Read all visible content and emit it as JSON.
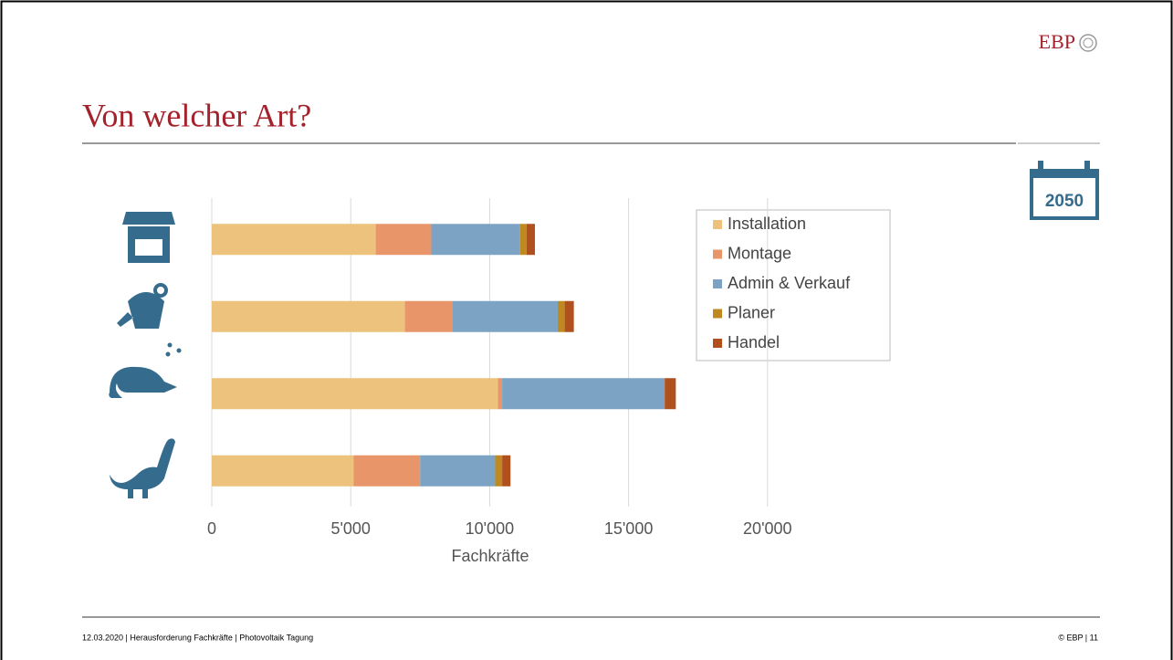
{
  "logo": "EBP",
  "badge": "2050",
  "footer": {
    "left": "12.03.2020  |  Herausforderung Fachkräfte |  Photovoltaik Tagung",
    "right": "© EBP  |  11"
  },
  "chart_data": {
    "type": "stacked-barh",
    "title": "Von welcher Art?",
    "x_label": "Fachkräfte",
    "categories": [
      null,
      null,
      null,
      null
    ],
    "series": [
      {
        "name": "Installation",
        "color": "#ecc27c",
        "values": [
          5900,
          6950,
          10300,
          5100
        ]
      },
      {
        "name": "Montage",
        "color": "#e8956a",
        "values": [
          2000,
          1700,
          150,
          2400
        ]
      },
      {
        "name": "Admin & Verkauf",
        "color": "#7ca3c4",
        "values": [
          3200,
          3800,
          5850,
          2700
        ]
      },
      {
        "name": "Planer",
        "color": "#c08820",
        "values": [
          230,
          250,
          0,
          250
        ]
      },
      {
        "name": "Handel",
        "color": "#b0501e",
        "values": [
          300,
          330,
          400,
          300
        ]
      }
    ],
    "xlim": [
      0,
      25000
    ],
    "xticks": [
      0,
      {
        "value": 5000,
        "label": "5'000"
      },
      {
        "value": 10000,
        "label": "10'000"
      },
      {
        "value": 15000,
        "label": "15'000"
      },
      {
        "value": 20000,
        "label": "20'000"
      }
    ],
    "grid": true,
    "legend": "right"
  }
}
